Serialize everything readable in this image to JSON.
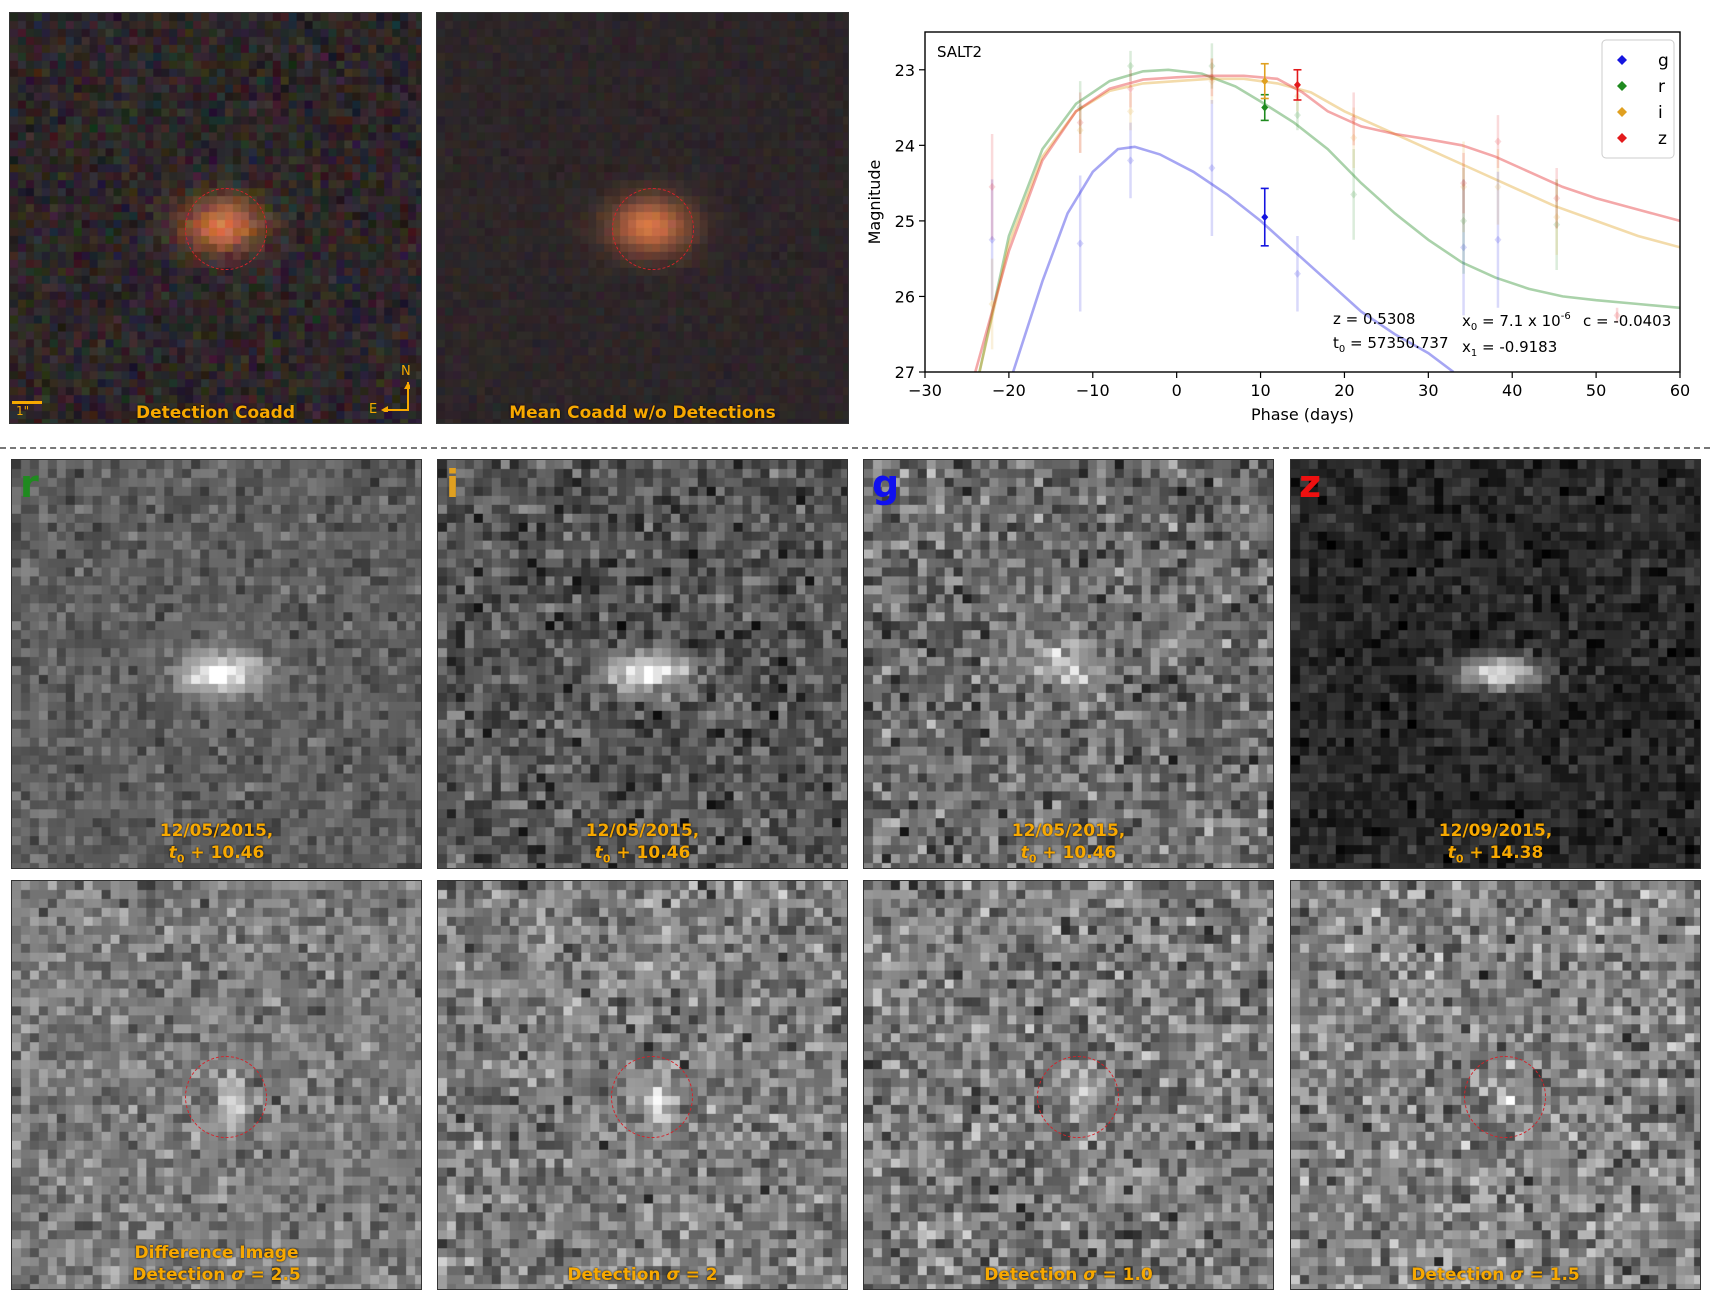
{
  "top_panels": {
    "detection_coadd": {
      "caption": "Detection Coadd",
      "scale_label": "1\"",
      "north_label": "N",
      "east_label": "E"
    },
    "mean_coadd": {
      "caption": "Mean Coadd w/o Detections"
    }
  },
  "band_panels": [
    {
      "band": "r",
      "band_color": "#1f8a1f",
      "date": "12/05/2015,",
      "phase": "+ 10.46"
    },
    {
      "band": "i",
      "band_color": "#e0a020",
      "date": "12/05/2015,",
      "phase": "+ 10.46"
    },
    {
      "band": "g",
      "band_color": "#1010ee",
      "date": "12/05/2015,",
      "phase": "+ 10.46"
    },
    {
      "band": "z",
      "band_color": "#ee1010",
      "date": "12/09/2015,",
      "phase": "+ 14.38"
    }
  ],
  "t0_symbol": "t",
  "t0_sub": "0",
  "diff_panels": [
    {
      "caption_line1": "Difference Image",
      "caption_prefix": "Detection",
      "sigma": "σ",
      "caption_value": "= 2.5"
    },
    {
      "caption_line1": "",
      "caption_prefix": "Detection",
      "sigma": "σ",
      "caption_value": "= 2"
    },
    {
      "caption_line1": "",
      "caption_prefix": "Detection",
      "sigma": "σ",
      "caption_value": "= 1.0"
    },
    {
      "caption_line1": "",
      "caption_prefix": "Detection",
      "sigma": "σ",
      "caption_value": "= 1.5"
    }
  ],
  "chart_data": {
    "type": "line",
    "title": "SALT2",
    "xlabel": "Phase (days)",
    "ylabel": "Magnitude",
    "xlim": [
      -30,
      60
    ],
    "ylim": [
      27,
      22.5
    ],
    "xticks": [
      -30,
      -20,
      -10,
      0,
      10,
      20,
      30,
      40,
      50,
      60
    ],
    "yticks": [
      23,
      24,
      25,
      26,
      27
    ],
    "legend_position": "top-right",
    "legend": [
      "g",
      "r",
      "i",
      "z"
    ],
    "colors": {
      "g": "#1515e0",
      "r": "#1f8a1f",
      "i": "#e0a020",
      "z": "#e31a1c"
    },
    "fit_params": {
      "z_text": "z = 0.5308",
      "t0_text": "t",
      "t0_sub": "0",
      "t0_value": " = 57350.737",
      "x0_text": "x",
      "x0_sub": "0",
      "x0_value": " = 7.1 x 10",
      "x0_exp": "-6",
      "x1_text": "x",
      "x1_sub": "1",
      "x1_value": " = -0.9183",
      "c_text": "c = -0.0403"
    },
    "series": [
      {
        "name": "g",
        "model": [
          [
            -19.5,
            27
          ],
          [
            -16,
            25.8
          ],
          [
            -13,
            24.9
          ],
          [
            -10,
            24.35
          ],
          [
            -7,
            24.05
          ],
          [
            -5,
            24.02
          ],
          [
            -2,
            24.12
          ],
          [
            2,
            24.35
          ],
          [
            6,
            24.65
          ],
          [
            10,
            25.0
          ],
          [
            14,
            25.4
          ],
          [
            18,
            25.8
          ],
          [
            22,
            26.2
          ],
          [
            26,
            26.5
          ],
          [
            30,
            26.75
          ],
          [
            33,
            27
          ]
        ],
        "points": [
          {
            "x": -22,
            "y": 25.25,
            "err": 0.8,
            "faint": true
          },
          {
            "x": -11.5,
            "y": 25.3,
            "err": 0.9,
            "faint": true
          },
          {
            "x": -5.5,
            "y": 24.2,
            "err": 0.5,
            "faint": true
          },
          {
            "x": 4.2,
            "y": 24.3,
            "err": 0.9,
            "faint": true
          },
          {
            "x": 10.5,
            "y": 24.95,
            "err": 0.38,
            "faint": false
          },
          {
            "x": 14.4,
            "y": 25.7,
            "err": 0.5,
            "faint": true
          },
          {
            "x": 34.2,
            "y": 25.35,
            "err": 0.9,
            "faint": true
          },
          {
            "x": 38.3,
            "y": 25.25,
            "err": 0.9,
            "faint": true
          }
        ]
      },
      {
        "name": "r",
        "model": [
          [
            -23.5,
            27
          ],
          [
            -20,
            25.2
          ],
          [
            -16,
            24.05
          ],
          [
            -12,
            23.45
          ],
          [
            -8,
            23.15
          ],
          [
            -4,
            23.02
          ],
          [
            -1,
            23.0
          ],
          [
            3,
            23.05
          ],
          [
            7,
            23.22
          ],
          [
            10,
            23.42
          ],
          [
            14,
            23.7
          ],
          [
            18,
            24.05
          ],
          [
            22,
            24.5
          ],
          [
            26,
            24.9
          ],
          [
            30,
            25.25
          ],
          [
            34,
            25.55
          ],
          [
            38,
            25.75
          ],
          [
            42,
            25.9
          ],
          [
            46,
            26.0
          ],
          [
            50,
            26.05
          ],
          [
            55,
            26.1
          ],
          [
            60,
            26.15
          ]
        ],
        "points": [
          {
            "x": -11.5,
            "y": 23.5,
            "err": 0.35,
            "faint": true
          },
          {
            "x": -5.5,
            "y": 22.95,
            "err": 0.2,
            "faint": true
          },
          {
            "x": 4.2,
            "y": 22.95,
            "err": 0.3,
            "faint": true
          },
          {
            "x": 10.5,
            "y": 23.5,
            "err": 0.17,
            "faint": false
          },
          {
            "x": 14.4,
            "y": 23.6,
            "err": 0.2,
            "faint": true
          },
          {
            "x": 21.1,
            "y": 24.65,
            "err": 0.6,
            "faint": true
          },
          {
            "x": 34.2,
            "y": 25.0,
            "err": 0.7,
            "faint": true
          },
          {
            "x": 45.3,
            "y": 25.05,
            "err": 0.6,
            "faint": true
          }
        ]
      },
      {
        "name": "i",
        "model": [
          [
            -23.5,
            27
          ],
          [
            -20,
            25.3
          ],
          [
            -16,
            24.15
          ],
          [
            -12,
            23.55
          ],
          [
            -8,
            23.28
          ],
          [
            -4,
            23.18
          ],
          [
            0,
            23.15
          ],
          [
            4,
            23.12
          ],
          [
            8,
            23.12
          ],
          [
            12,
            23.18
          ],
          [
            16,
            23.3
          ],
          [
            20,
            23.55
          ],
          [
            25,
            23.8
          ],
          [
            30,
            24.05
          ],
          [
            35,
            24.3
          ],
          [
            40,
            24.55
          ],
          [
            45,
            24.8
          ],
          [
            50,
            25.0
          ],
          [
            55,
            25.2
          ],
          [
            60,
            25.35
          ]
        ],
        "points": [
          {
            "x": -22,
            "y": 26.1,
            "err": 0.6,
            "faint": true
          },
          {
            "x": -11.5,
            "y": 23.8,
            "err": 0.3,
            "faint": true
          },
          {
            "x": -5.5,
            "y": 23.55,
            "err": 0.25,
            "faint": true
          },
          {
            "x": 4.2,
            "y": 23.15,
            "err": 0.3,
            "faint": true
          },
          {
            "x": 10.5,
            "y": 23.15,
            "err": 0.23,
            "faint": false
          },
          {
            "x": 14.4,
            "y": 23.35,
            "err": 0.2,
            "faint": true
          },
          {
            "x": 21.1,
            "y": 23.9,
            "err": 0.4,
            "faint": true
          },
          {
            "x": 34.2,
            "y": 24.55,
            "err": 0.6,
            "faint": true
          },
          {
            "x": 38.3,
            "y": 24.55,
            "err": 0.5,
            "faint": true
          },
          {
            "x": 45.3,
            "y": 24.95,
            "err": 0.5,
            "faint": true
          }
        ]
      },
      {
        "name": "z",
        "model": [
          [
            -24,
            27
          ],
          [
            -20,
            25.4
          ],
          [
            -16,
            24.2
          ],
          [
            -12,
            23.55
          ],
          [
            -8,
            23.25
          ],
          [
            -4,
            23.13
          ],
          [
            0,
            23.1
          ],
          [
            4,
            23.08
          ],
          [
            8,
            23.08
          ],
          [
            12,
            23.12
          ],
          [
            15,
            23.3
          ],
          [
            18,
            23.55
          ],
          [
            22,
            23.75
          ],
          [
            26,
            23.85
          ],
          [
            30,
            23.92
          ],
          [
            34,
            24.0
          ],
          [
            38,
            24.15
          ],
          [
            42,
            24.35
          ],
          [
            46,
            24.55
          ],
          [
            50,
            24.7
          ],
          [
            55,
            24.85
          ],
          [
            60,
            25.0
          ]
        ],
        "points": [
          {
            "x": -22,
            "y": 24.55,
            "err": 0.7,
            "faint": true
          },
          {
            "x": -11.5,
            "y": 23.7,
            "err": 0.4,
            "faint": true
          },
          {
            "x": -5.5,
            "y": 23.25,
            "err": 0.25,
            "faint": true
          },
          {
            "x": 4.2,
            "y": 23.1,
            "err": 0.25,
            "faint": true
          },
          {
            "x": 14.4,
            "y": 23.2,
            "err": 0.2,
            "faint": false
          },
          {
            "x": 21.1,
            "y": 23.65,
            "err": 0.35,
            "faint": true
          },
          {
            "x": 34.2,
            "y": 24.5,
            "err": 0.4,
            "faint": true
          },
          {
            "x": 38.3,
            "y": 23.95,
            "err": 0.35,
            "faint": true
          },
          {
            "x": 45.3,
            "y": 24.7,
            "err": 0.4,
            "faint": true
          },
          {
            "x": 52.5,
            "y": 26.25,
            "err": 0.1,
            "faint": true
          }
        ]
      }
    ]
  }
}
